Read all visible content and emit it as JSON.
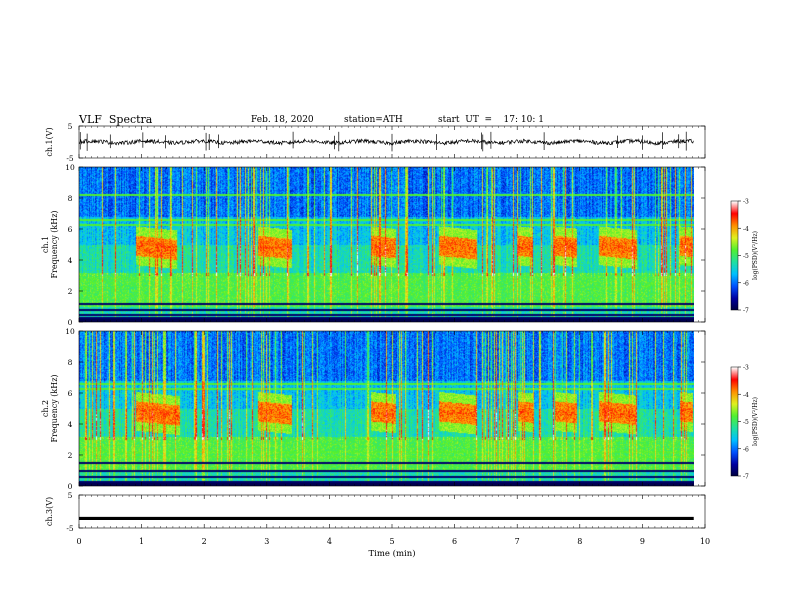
{
  "header": {
    "title": "VLF  Spectra",
    "date": "Feb. 18, 2020",
    "station": "station=ATH",
    "start_ut": "start  UT  =    17: 10: 1"
  },
  "chart_data": [
    {
      "type": "line",
      "panel": "ch1-waveform",
      "ylabel": "ch.1(V)",
      "yticks": [
        "5",
        "-5"
      ],
      "ylim": [
        -5,
        5
      ],
      "xlim": [
        0,
        10
      ],
      "x_ticks": [
        "0",
        "1",
        "2",
        "3",
        "4",
        "5",
        "6",
        "7",
        "8",
        "9",
        "10"
      ],
      "signal_mean": 0,
      "signal_noise_amplitude": 0.6,
      "spikes_at_min": [
        0.02,
        0.13,
        0.5,
        1.02,
        1.38,
        2.03,
        2.08,
        2.23,
        3.42,
        4.08,
        4.15,
        5.0,
        5.71,
        6.43,
        6.45,
        6.58,
        7.43,
        8.6,
        9.0,
        9.32,
        9.58,
        9.7
      ],
      "data_end_min": 9.82
    },
    {
      "type": "heatmap",
      "panel": "ch1-spectrogram",
      "ylabel": "ch.1\nFrequency  (kHz)",
      "ylabel_lines": [
        "ch.1",
        "Frequency  (kHz)"
      ],
      "yticks": [
        "0",
        "2",
        "4",
        "6",
        "8",
        "10"
      ],
      "ylim": [
        0,
        10
      ],
      "xlim": [
        0,
        10
      ],
      "data_end_min": 9.82,
      "colorbar": {
        "label": "log(PSD)(V²/Hz)",
        "ticks": [
          "-3",
          "-4",
          "-5",
          "-6",
          "-7"
        ],
        "range": [
          -7,
          -3
        ]
      },
      "features_note": "",
      "bright_bursts_min": [
        [
          0.9,
          1.55
        ],
        [
          2.85,
          3.4
        ],
        [
          4.65,
          5.05
        ],
        [
          5.75,
          6.35
        ],
        [
          7.0,
          7.25
        ],
        [
          7.6,
          7.95
        ],
        [
          8.3,
          8.9
        ],
        [
          9.6,
          9.8
        ]
      ],
      "burst_freq_khz": [
        4.3,
        5.6
      ],
      "background_band_khz": [
        1.0,
        3.0
      ],
      "tone_lines_khz": [
        0.3,
        0.5,
        0.8,
        1.2,
        6.3,
        6.6,
        8.2
      ]
    },
    {
      "type": "heatmap",
      "panel": "ch2-spectrogram",
      "ylabel": "ch.2\nFrequency  (kHz)",
      "ylabel_lines": [
        "ch.2",
        "Frequency  (kHz)"
      ],
      "yticks": [
        "0",
        "2",
        "4",
        "6",
        "8",
        "10"
      ],
      "ylim": [
        0,
        10
      ],
      "xlim": [
        0,
        10
      ],
      "data_end_min": 9.82,
      "colorbar": {
        "label": "log(PSD)(V²/Hz)",
        "ticks": [
          "-3",
          "-4",
          "-5",
          "-6",
          "-7"
        ],
        "range": [
          -7,
          -3
        ]
      },
      "bright_bursts_min": [
        [
          0.9,
          1.6
        ],
        [
          2.85,
          3.4
        ],
        [
          4.65,
          5.05
        ],
        [
          5.75,
          6.35
        ],
        [
          7.0,
          7.25
        ],
        [
          7.6,
          7.95
        ],
        [
          8.3,
          8.9
        ],
        [
          9.6,
          9.8
        ]
      ],
      "burst_freq_khz": [
        4.2,
        5.5
      ],
      "background_band_khz": [
        1.0,
        3.0
      ],
      "tone_lines_khz": [
        0.3,
        0.6,
        1.0,
        1.5,
        1.9,
        2.2,
        6.3,
        6.6
      ]
    },
    {
      "type": "line",
      "panel": "ch3-waveform",
      "ylabel": "ch.3(V)",
      "yticks": [
        "5",
        "-5"
      ],
      "ylim": [
        -5,
        5
      ],
      "xlim": [
        0,
        10
      ],
      "signal_level": -2.1,
      "data_end_min": 9.82,
      "xlabel": "Time  (min)",
      "x_ticks": [
        "0",
        "1",
        "2",
        "3",
        "4",
        "5",
        "6",
        "7",
        "8",
        "9",
        "10"
      ]
    }
  ],
  "colors": {
    "colormap": [
      "#00003c",
      "#0000a0",
      "#0050ff",
      "#00c0ff",
      "#20e0a0",
      "#50f030",
      "#e0f020",
      "#ff9000",
      "#ff0000",
      "#ffffff"
    ]
  }
}
